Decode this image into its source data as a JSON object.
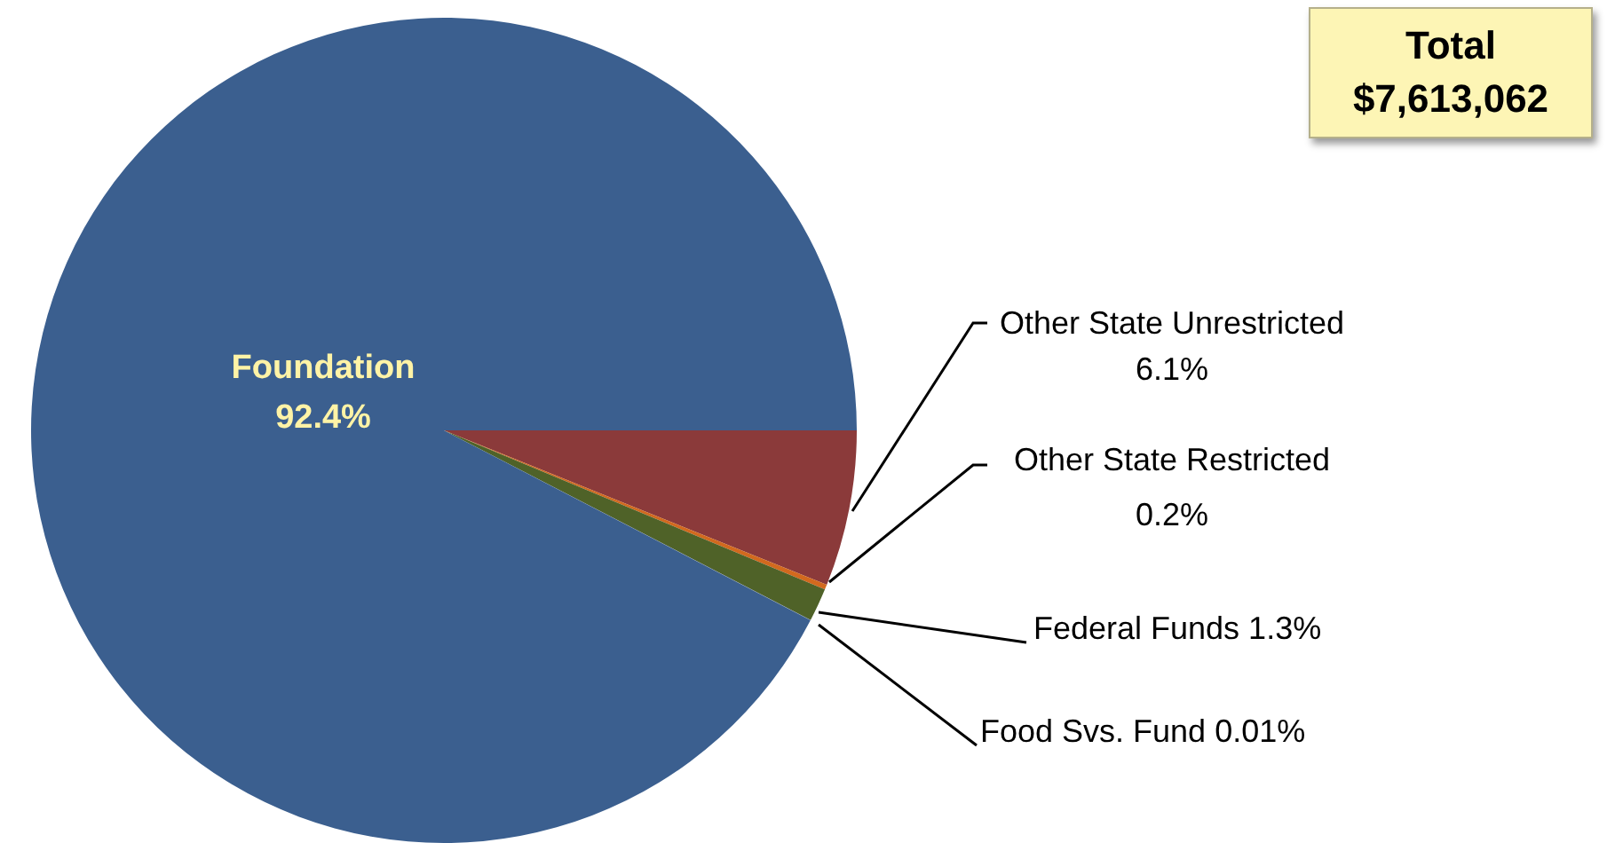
{
  "chart_data": {
    "type": "pie",
    "categories": [
      "Other State Unrestricted",
      "Other State Restricted",
      "Federal Funds",
      "Food Svs. Fund",
      "Foundation"
    ],
    "values": [
      6.1,
      0.2,
      1.3,
      0.01,
      92.4
    ],
    "colors": [
      "#8b3a3a",
      "#d2691e",
      "#4f6228",
      "#7a8fb0",
      "#3b5f8f"
    ],
    "value_labels": [
      "6.1%",
      "0.2%",
      "1.3%",
      "0.01%",
      "92.4%"
    ],
    "legend": false,
    "annotations": [
      "Total $7,613,062"
    ]
  }
}
